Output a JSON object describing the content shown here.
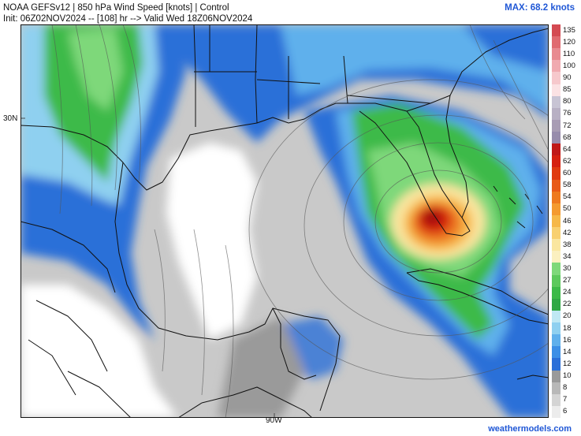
{
  "header": {
    "line1": "NOAA GEFSv12 | 850 hPa Wind Speed [knots] | Control",
    "line2": "Init: 06Z02NOV2024 -- [108] hr --> Valid Wed 18Z06NOV2024",
    "max_label": "MAX: 68.2 knots"
  },
  "axes": {
    "lat_label": "30N",
    "lon_label": "90W"
  },
  "footer": {
    "credit": "weathermodels.com"
  },
  "colorbar": {
    "ticks": [
      "135",
      "120",
      "110",
      "100",
      "90",
      "85",
      "80",
      "76",
      "72",
      "68",
      "64",
      "62",
      "60",
      "58",
      "54",
      "50",
      "46",
      "42",
      "38",
      "34",
      "30",
      "27",
      "24",
      "22",
      "20",
      "18",
      "16",
      "14",
      "12",
      "10",
      "8",
      "7",
      "6"
    ],
    "colors": [
      "#d44a52",
      "#e06a70",
      "#e88a90",
      "#f0aab0",
      "#f6c8cc",
      "#fbe2e4",
      "#c8c4d4",
      "#b8b0c4",
      "#a89cb4",
      "#988cac",
      "#c01818",
      "#d62010",
      "#e03a10",
      "#e85a18",
      "#ee7a20",
      "#f49a30",
      "#f6b848",
      "#f8d070",
      "#fae6a0",
      "#fbf0c0",
      "#7ed87a",
      "#5cc95c",
      "#3cba48",
      "#2fa844",
      "#bfe8f4",
      "#8fd0f0",
      "#5fb0ec",
      "#3c8fe6",
      "#2a6fd8",
      "#9a9a9a",
      "#b8b8b8",
      "#d4d4d4",
      "#ececec"
    ]
  }
}
